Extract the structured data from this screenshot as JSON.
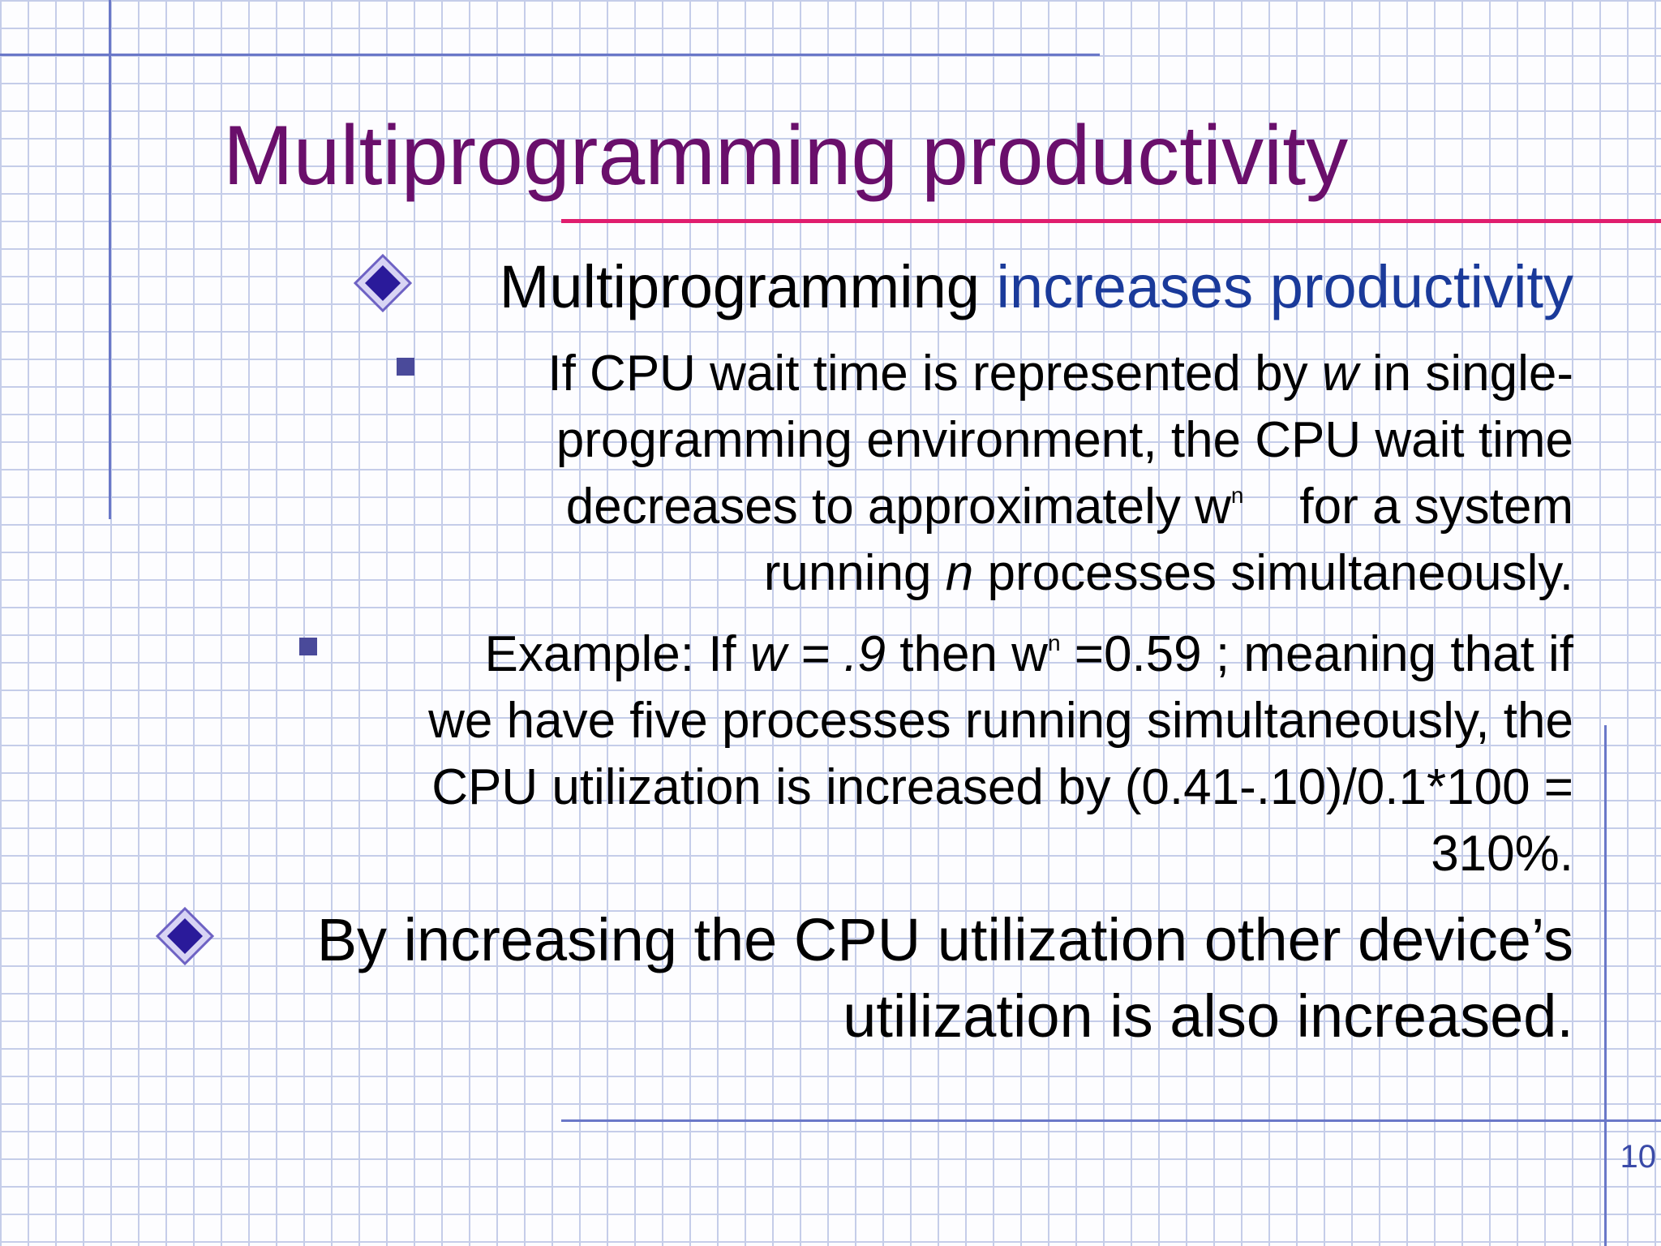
{
  "slide": {
    "title": "Multiprogramming productivity",
    "bullet1": {
      "text": "Multiprogramming",
      "highlight": "increases productivity",
      "highlight_color": "#1a3a9a"
    },
    "sub1": {
      "line1_a": "If CPU wait time is represented by",
      "line1_var": "w",
      "line1_b": "in single-",
      "line2": "programming environment, the CPU wait time",
      "line3_a": "decreases to approximately  w",
      "line3_sup": "n",
      "line3_b": "for a system",
      "line4_a": "running",
      "line4_var": "n",
      "line4_b": "processes simultaneously."
    },
    "sub2": {
      "line1_a": "Example: If",
      "line1_var": "w = .9",
      "line1_b": " then w",
      "line1_sup": "n",
      "line1_c": "=0.59  ; meaning that if",
      "line2": "we have five processes running simultaneously, the",
      "line3": "CPU utilization is increased by (0.41-.10)/0.1*100 =",
      "line4": "310%."
    },
    "bullet2": {
      "line1": "By increasing the CPU utilization other device’s",
      "line2": "utilization is also increased."
    },
    "page_number": "10",
    "title_color": "#6a0f6b",
    "accent_color": "#e01e6e",
    "bullet_color": "#2a1a9a",
    "icons": [
      "diamond-bullet-icon",
      "square-bullet-icon"
    ]
  }
}
